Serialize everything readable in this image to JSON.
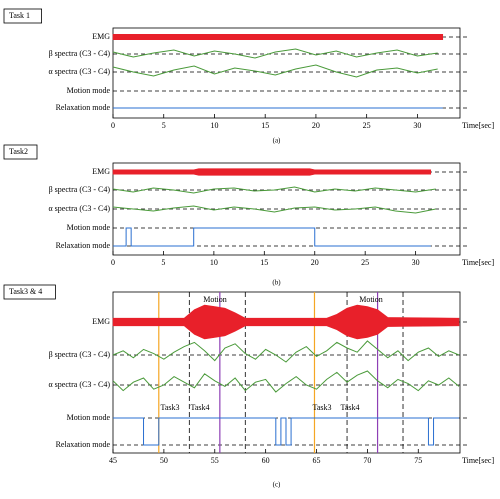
{
  "chart_data": [
    {
      "type": "line",
      "panel_label": "Task 1",
      "caption": "(a)",
      "xlabel": "Time[sec]",
      "rows": [
        "EMG",
        "β spectra (C3 - C4)",
        "α spectra (C3 - C4)",
        "Motion mode",
        "Relaxation mode"
      ],
      "xlim": [
        0,
        34.2
      ],
      "xticks": [
        0,
        5,
        10,
        15,
        20,
        25,
        30
      ],
      "series": [
        {
          "kind": "envelope",
          "color": "#e8202a",
          "x": [
            0,
            4,
            8,
            12,
            16,
            20,
            24,
            28,
            32.5
          ],
          "values": [
            0.5,
            0.5,
            0.5,
            0.5,
            0.5,
            0.5,
            0.5,
            0.5,
            0.5
          ]
        },
        {
          "kind": "trace",
          "color": "#4a9a3a",
          "x": [
            0,
            2,
            4,
            6,
            8,
            10,
            12,
            14,
            16,
            18,
            20,
            22,
            24,
            26,
            28,
            30,
            32
          ],
          "values": [
            0.2,
            -0.3,
            0.1,
            0.4,
            -0.2,
            0.3,
            0.0,
            -0.4,
            0.2,
            0.5,
            -0.1,
            0.3,
            -0.3,
            0.1,
            0.4,
            -0.2,
            0.1
          ]
        },
        {
          "kind": "trace",
          "color": "#4a9a3a",
          "x": [
            0,
            2,
            4,
            6,
            8,
            10,
            12,
            14,
            16,
            18,
            20,
            22,
            24,
            26,
            28,
            30,
            32
          ],
          "values": [
            0.5,
            0.0,
            -0.4,
            0.2,
            0.6,
            -0.2,
            0.4,
            0.1,
            -0.3,
            0.3,
            0.7,
            0.0,
            -0.5,
            0.2,
            0.4,
            -0.1,
            0.3
          ]
        },
        {
          "kind": "mode",
          "color": "#2a6fd0",
          "x": [
            0,
            32.5
          ],
          "values": [
            0,
            0
          ]
        }
      ],
      "vlines": [],
      "annotations": []
    },
    {
      "type": "line",
      "panel_label": "Task2",
      "caption": "(b)",
      "xlabel": "Time[sec]",
      "rows": [
        "EMG",
        "β spectra (C3 - C4)",
        "α spectra (C3 - C4)",
        "Motion mode",
        "Relaxation mode"
      ],
      "xlim": [
        0,
        34.4
      ],
      "xticks": [
        0,
        5,
        10,
        15,
        20,
        25,
        30
      ],
      "series": [
        {
          "kind": "envelope",
          "color": "#e8202a",
          "x": [
            0,
            8,
            8.5,
            19.5,
            20,
            31.5
          ],
          "values": [
            0.4,
            0.4,
            0.6,
            0.6,
            0.4,
            0.4
          ]
        },
        {
          "kind": "trace",
          "color": "#4a9a3a",
          "x": [
            0,
            2,
            4,
            6,
            8,
            10,
            12,
            14,
            16,
            18,
            20,
            22,
            24,
            26,
            28,
            30,
            32
          ],
          "values": [
            0.1,
            -0.2,
            0.2,
            0.0,
            -0.3,
            0.1,
            0.2,
            -0.1,
            0.0,
            0.3,
            -0.2,
            0.1,
            -0.1,
            0.2,
            0.0,
            -0.2,
            0.1
          ]
        },
        {
          "kind": "trace",
          "color": "#4a9a3a",
          "x": [
            0,
            2,
            4,
            6,
            8,
            10,
            12,
            14,
            16,
            18,
            20,
            22,
            24,
            26,
            28,
            30,
            32
          ],
          "values": [
            0.2,
            0.0,
            -0.2,
            0.1,
            0.3,
            -0.1,
            0.2,
            0.0,
            -0.3,
            0.1,
            0.2,
            -0.1,
            0.0,
            0.2,
            -0.2,
            -0.4,
            0.0
          ]
        },
        {
          "kind": "mode",
          "color": "#2a6fd0",
          "x": [
            0,
            1.3,
            1.3,
            1.8,
            1.8,
            8,
            8,
            20,
            20,
            31.5
          ],
          "values": [
            0,
            0,
            1,
            1,
            0,
            0,
            1,
            1,
            0,
            0
          ]
        }
      ],
      "vlines": [],
      "annotations": []
    },
    {
      "type": "line",
      "panel_label": "Task3 & 4",
      "caption": "(c)",
      "xlabel": "Time[sec]",
      "rows": [
        "EMG",
        "β spectra (C3 - C4)",
        "α spectra (C3 - C4)",
        "Motion mode",
        "Relaxation mode"
      ],
      "xlim": [
        45,
        79.1
      ],
      "xticks": [
        45,
        50,
        55,
        60,
        65,
        70,
        75
      ],
      "series": [
        {
          "kind": "envelope",
          "color": "#e8202a",
          "x": [
            45,
            52,
            53,
            54,
            55,
            56,
            57,
            58,
            66,
            67,
            68,
            69,
            70,
            71,
            72,
            79
          ],
          "values": [
            0.5,
            0.5,
            1.6,
            2.2,
            2.0,
            1.8,
            1.2,
            0.5,
            0.5,
            1.0,
            1.8,
            2.2,
            2.0,
            1.6,
            0.6,
            0.5
          ]
        },
        {
          "kind": "trace",
          "color": "#4a9a3a",
          "x": [
            45,
            46,
            47,
            48,
            49,
            50,
            51,
            52,
            53,
            54,
            55,
            56,
            57,
            58,
            59,
            60,
            61,
            62,
            63,
            64,
            65,
            66,
            67,
            68,
            69,
            70,
            71,
            72,
            73,
            74,
            75,
            76,
            77,
            78,
            79
          ],
          "values": [
            0.0,
            0.3,
            -0.2,
            0.4,
            0.1,
            -0.3,
            0.2,
            0.6,
            0.9,
            0.3,
            -0.4,
            0.5,
            0.8,
            0.1,
            -0.3,
            0.4,
            0.0,
            -0.5,
            0.2,
            0.6,
            -0.1,
            0.3,
            0.9,
            0.5,
            0.2,
            1.0,
            0.4,
            -0.2,
            0.3,
            -0.4,
            0.2,
            0.5,
            -0.1,
            0.3,
            0.0
          ]
        },
        {
          "kind": "trace",
          "color": "#4a9a3a",
          "x": [
            45,
            46,
            47,
            48,
            49,
            50,
            51,
            52,
            53,
            54,
            55,
            56,
            57,
            58,
            59,
            60,
            61,
            62,
            63,
            64,
            65,
            66,
            67,
            68,
            69,
            70,
            71,
            72,
            73,
            74,
            75,
            76,
            77,
            78,
            79
          ],
          "values": [
            0.3,
            -0.4,
            0.2,
            0.5,
            -0.3,
            0.0,
            0.6,
            0.2,
            -0.2,
            0.8,
            0.3,
            -0.1,
            0.5,
            -0.4,
            0.2,
            0.4,
            -0.5,
            0.1,
            0.6,
            0.0,
            -0.3,
            0.4,
            0.9,
            0.2,
            0.7,
            1.0,
            0.3,
            -0.2,
            0.4,
            0.1,
            -0.4,
            0.3,
            0.0,
            0.5,
            -0.1
          ]
        },
        {
          "kind": "mode",
          "color": "#2a6fd0",
          "x": [
            45,
            48,
            48,
            49.5,
            49.5,
            61,
            61,
            61.5,
            61.5,
            62,
            62,
            62.5,
            62.5,
            76,
            76,
            76.5,
            76.5,
            79
          ],
          "values": [
            1,
            1,
            0,
            0,
            1,
            1,
            0,
            0,
            1,
            1,
            0,
            0,
            1,
            1,
            0,
            0,
            1,
            1
          ]
        }
      ],
      "vlines": [
        {
          "value": 49.5,
          "color": "#f5a623"
        },
        {
          "value": 64.8,
          "color": "#f5a623"
        },
        {
          "value": 55.5,
          "color": "#8e3fb5"
        },
        {
          "value": 71,
          "color": "#8e3fb5"
        },
        {
          "value": 52.5,
          "color": "#000000"
        },
        {
          "value": 58,
          "color": "#000000"
        },
        {
          "value": 68,
          "color": "#000000"
        },
        {
          "value": 73.5,
          "color": "#000000"
        }
      ],
      "annotations": [
        "Motion",
        "Motion",
        "Task3",
        "Task4",
        "Task3",
        "Task4"
      ]
    }
  ]
}
